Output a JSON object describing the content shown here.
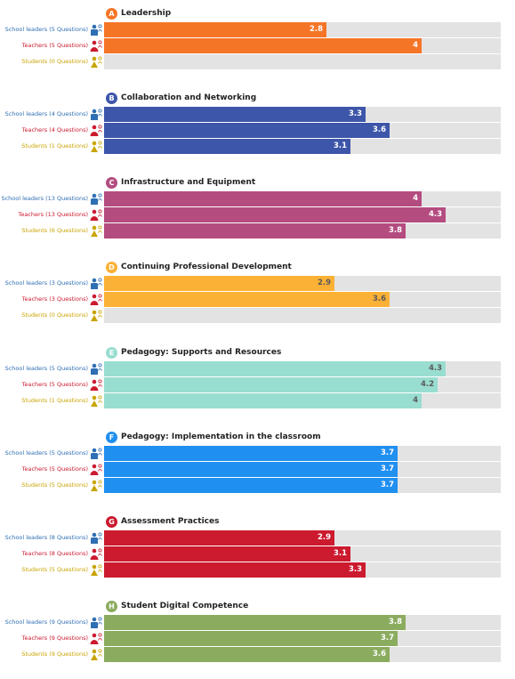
{
  "chart_data": {
    "type": "bar",
    "orientation": "horizontal",
    "xlim": [
      0,
      5
    ],
    "grid": false,
    "legend": "none",
    "groups": [
      {
        "badge": "A",
        "title": "Leadership",
        "color": "#f57527",
        "value_color": "#ffffff",
        "rows": [
          {
            "role": "school",
            "label": "School leaders (5 Questions)",
            "value": 2.8,
            "value_text": "2.8"
          },
          {
            "role": "teachers",
            "label": "Teachers (5 Questions)",
            "value": 4,
            "value_text": "4"
          },
          {
            "role": "students",
            "label": "Students (0 Questions)",
            "value": null,
            "value_text": ""
          }
        ]
      },
      {
        "badge": "B",
        "title": "Collaboration and Networking",
        "color": "#3d56a9",
        "value_color": "#ffffff",
        "rows": [
          {
            "role": "school",
            "label": "School leaders (4 Questions)",
            "value": 3.3,
            "value_text": "3.3"
          },
          {
            "role": "teachers",
            "label": "Teachers (4 Questions)",
            "value": 3.6,
            "value_text": "3.6"
          },
          {
            "role": "students",
            "label": "Students (1 Questions)",
            "value": 3.1,
            "value_text": "3.1"
          }
        ]
      },
      {
        "badge": "C",
        "title": "Infrastructure and Equipment",
        "color": "#b44c80",
        "value_color": "#ffffff",
        "rows": [
          {
            "role": "school",
            "label": "School leaders (13 Questions)",
            "value": 4,
            "value_text": "4"
          },
          {
            "role": "teachers",
            "label": "Teachers (13 Questions)",
            "value": 4.3,
            "value_text": "4.3"
          },
          {
            "role": "students",
            "label": "Students (6 Questions)",
            "value": 3.8,
            "value_text": "3.8"
          }
        ]
      },
      {
        "badge": "D",
        "title": "Continuing Professional Development",
        "color": "#fbb135",
        "value_color": "#5a5a5a",
        "rows": [
          {
            "role": "school",
            "label": "School leaders (3 Questions)",
            "value": 2.9,
            "value_text": "2.9"
          },
          {
            "role": "teachers",
            "label": "Teachers (3 Questions)",
            "value": 3.6,
            "value_text": "3.6"
          },
          {
            "role": "students",
            "label": "Students (0 Questions)",
            "value": null,
            "value_text": ""
          }
        ]
      },
      {
        "badge": "E",
        "title": "Pedagogy: Supports and Resources",
        "color": "#99ddd0",
        "value_color": "#5a5a5a",
        "rows": [
          {
            "role": "school",
            "label": "School leaders (5 Questions)",
            "value": 4.3,
            "value_text": "4.3"
          },
          {
            "role": "teachers",
            "label": "Teachers (5 Questions)",
            "value": 4.2,
            "value_text": "4.2"
          },
          {
            "role": "students",
            "label": "Students (1 Questions)",
            "value": 4,
            "value_text": "4"
          }
        ]
      },
      {
        "badge": "F",
        "title": "Pedagogy: Implementation in the classroom",
        "color": "#1f8ff0",
        "value_color": "#ffffff",
        "rows": [
          {
            "role": "school",
            "label": "School leaders (5 Questions)",
            "value": 3.7,
            "value_text": "3.7"
          },
          {
            "role": "teachers",
            "label": "Teachers (5 Questions)",
            "value": 3.7,
            "value_text": "3.7"
          },
          {
            "role": "students",
            "label": "Students (5 Questions)",
            "value": 3.7,
            "value_text": "3.7"
          }
        ]
      },
      {
        "badge": "G",
        "title": "Assessment Practices",
        "color": "#cc1a2f",
        "value_color": "#ffffff",
        "rows": [
          {
            "role": "school",
            "label": "School leaders (8 Questions)",
            "value": 2.9,
            "value_text": "2.9"
          },
          {
            "role": "teachers",
            "label": "Teachers (8 Questions)",
            "value": 3.1,
            "value_text": "3.1"
          },
          {
            "role": "students",
            "label": "Students (5 Questions)",
            "value": 3.3,
            "value_text": "3.3"
          }
        ]
      },
      {
        "badge": "H",
        "title": "Student Digital Competence",
        "color": "#8bac5f",
        "value_color": "#ffffff",
        "rows": [
          {
            "role": "school",
            "label": "School leaders (9 Questions)",
            "value": 3.8,
            "value_text": "3.8"
          },
          {
            "role": "teachers",
            "label": "Teachers (9 Questions)",
            "value": 3.7,
            "value_text": "3.7"
          },
          {
            "role": "students",
            "label": "Students (9 Questions)",
            "value": 3.6,
            "value_text": "3.6"
          }
        ]
      }
    ]
  },
  "roles": {
    "school": {
      "color": "#2f6fb3",
      "icon": "school-leader-icon"
    },
    "teachers": {
      "color": "#cc1a2f",
      "icon": "teacher-icon"
    },
    "students": {
      "color": "#c9a400",
      "icon": "student-icon"
    }
  }
}
